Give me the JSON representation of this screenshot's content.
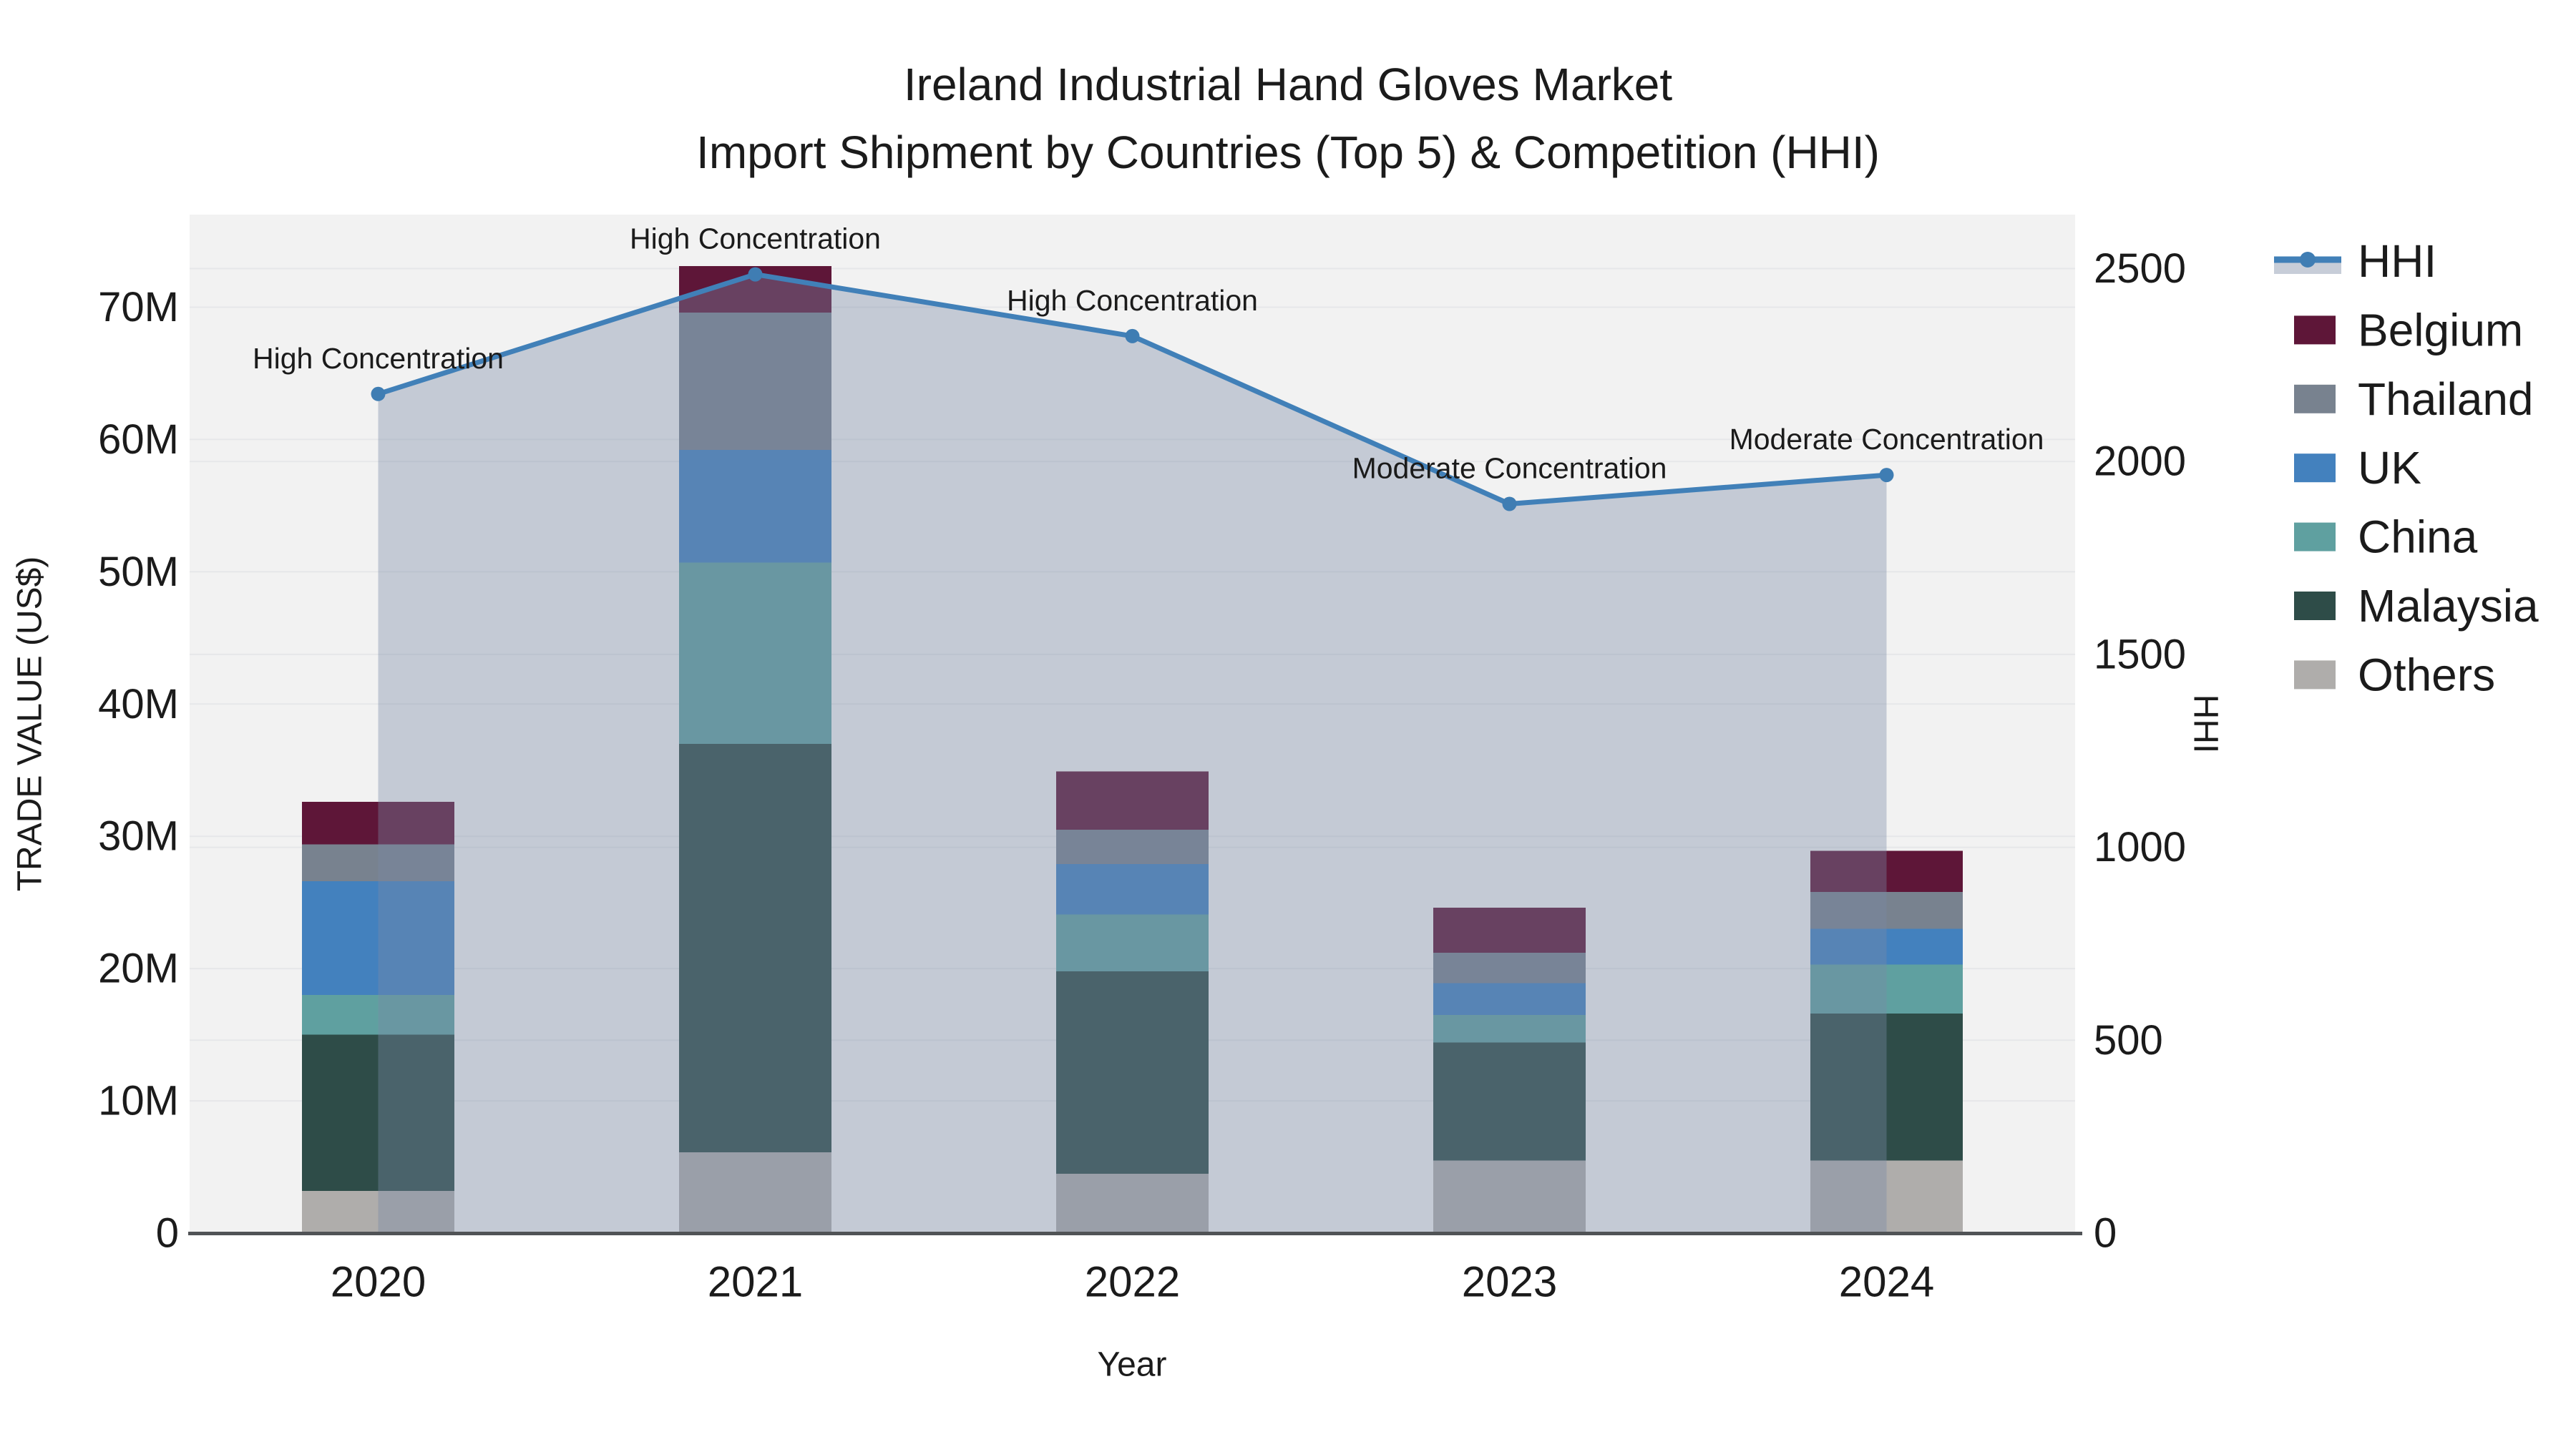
{
  "title": {
    "line1": "Ireland Industrial Hand Gloves Market",
    "line2": "Import Shipment by Countries (Top 5) & Competition (HHI)"
  },
  "chart_data": {
    "type": "bar+line",
    "title": "Ireland Industrial Hand Gloves Market — Import Shipment by Countries (Top 5) & Competition (HHI)",
    "categories": [
      "2020",
      "2021",
      "2022",
      "2023",
      "2024"
    ],
    "unit": "Million US$",
    "series": [
      {
        "name": "Belgium",
        "color": "#5E1638",
        "values": [
          3.2,
          3.5,
          4.4,
          3.4,
          3.1
        ]
      },
      {
        "name": "Thailand",
        "color": "#78828F",
        "values": [
          2.8,
          10.4,
          2.6,
          2.3,
          2.8
        ]
      },
      {
        "name": "UK",
        "color": "#4381BE",
        "values": [
          8.6,
          8.5,
          3.8,
          2.4,
          2.7
        ]
      },
      {
        "name": "China",
        "color": "#5FA0A0",
        "values": [
          3.0,
          13.7,
          4.3,
          2.1,
          3.7
        ]
      },
      {
        "name": "Malaysia",
        "color": "#2E4C48",
        "values": [
          11.8,
          30.9,
          15.3,
          8.9,
          11.1
        ]
      },
      {
        "name": "Others",
        "color": "#AFADAB",
        "values": [
          3.2,
          6.1,
          4.5,
          5.5,
          5.5
        ]
      }
    ],
    "stack_order_bottom_to_top": [
      "Others",
      "Malaysia",
      "China",
      "UK",
      "Thailand",
      "Belgium"
    ],
    "bar_totals": [
      32.6,
      73.1,
      34.9,
      24.6,
      28.9
    ],
    "line_series": {
      "name": "HHI",
      "color": "#4180B8",
      "marker_color": "#3F7DB3",
      "area_fill": "rgba(121,137,165,0.38)",
      "legend_band_color": "#C7CDD8",
      "values": [
        2175,
        2485,
        2325,
        1890,
        1965
      ]
    },
    "annotations": [
      {
        "category": "2020",
        "text": "High Concentration"
      },
      {
        "category": "2021",
        "text": "High Concentration"
      },
      {
        "category": "2022",
        "text": "High Concentration"
      },
      {
        "category": "2023",
        "text": "Moderate Concentration"
      },
      {
        "category": "2024",
        "text": "Moderate Concentration"
      }
    ],
    "xlabel": "Year",
    "ylabel": "TRADE VALUE (US$)",
    "y2label": "HHI",
    "ylim": [
      0,
      77
    ],
    "y2lim": [
      0,
      2640
    ],
    "y_ticks": [
      {
        "value": 0,
        "label": "0"
      },
      {
        "value": 10,
        "label": "10M"
      },
      {
        "value": 20,
        "label": "20M"
      },
      {
        "value": 30,
        "label": "30M"
      },
      {
        "value": 40,
        "label": "40M"
      },
      {
        "value": 50,
        "label": "50M"
      },
      {
        "value": 60,
        "label": "60M"
      },
      {
        "value": 70,
        "label": "70M"
      }
    ],
    "y2_ticks": [
      {
        "value": 0,
        "label": "0"
      },
      {
        "value": 500,
        "label": "500"
      },
      {
        "value": 1000,
        "label": "1000"
      },
      {
        "value": 1500,
        "label": "1500"
      },
      {
        "value": 2000,
        "label": "2000"
      },
      {
        "value": 2500,
        "label": "2500"
      }
    ],
    "legend_entries": [
      "HHI",
      "Belgium",
      "Thailand",
      "UK",
      "China",
      "Malaysia",
      "Others"
    ],
    "legend_position": "right",
    "grid": true,
    "colors": {
      "plot_background": "#F2F2F2",
      "figure_background": "#FFFFFF",
      "gridline": "#E6E7E9",
      "axis_line": "#505356",
      "text": "#1B1B1B"
    }
  }
}
